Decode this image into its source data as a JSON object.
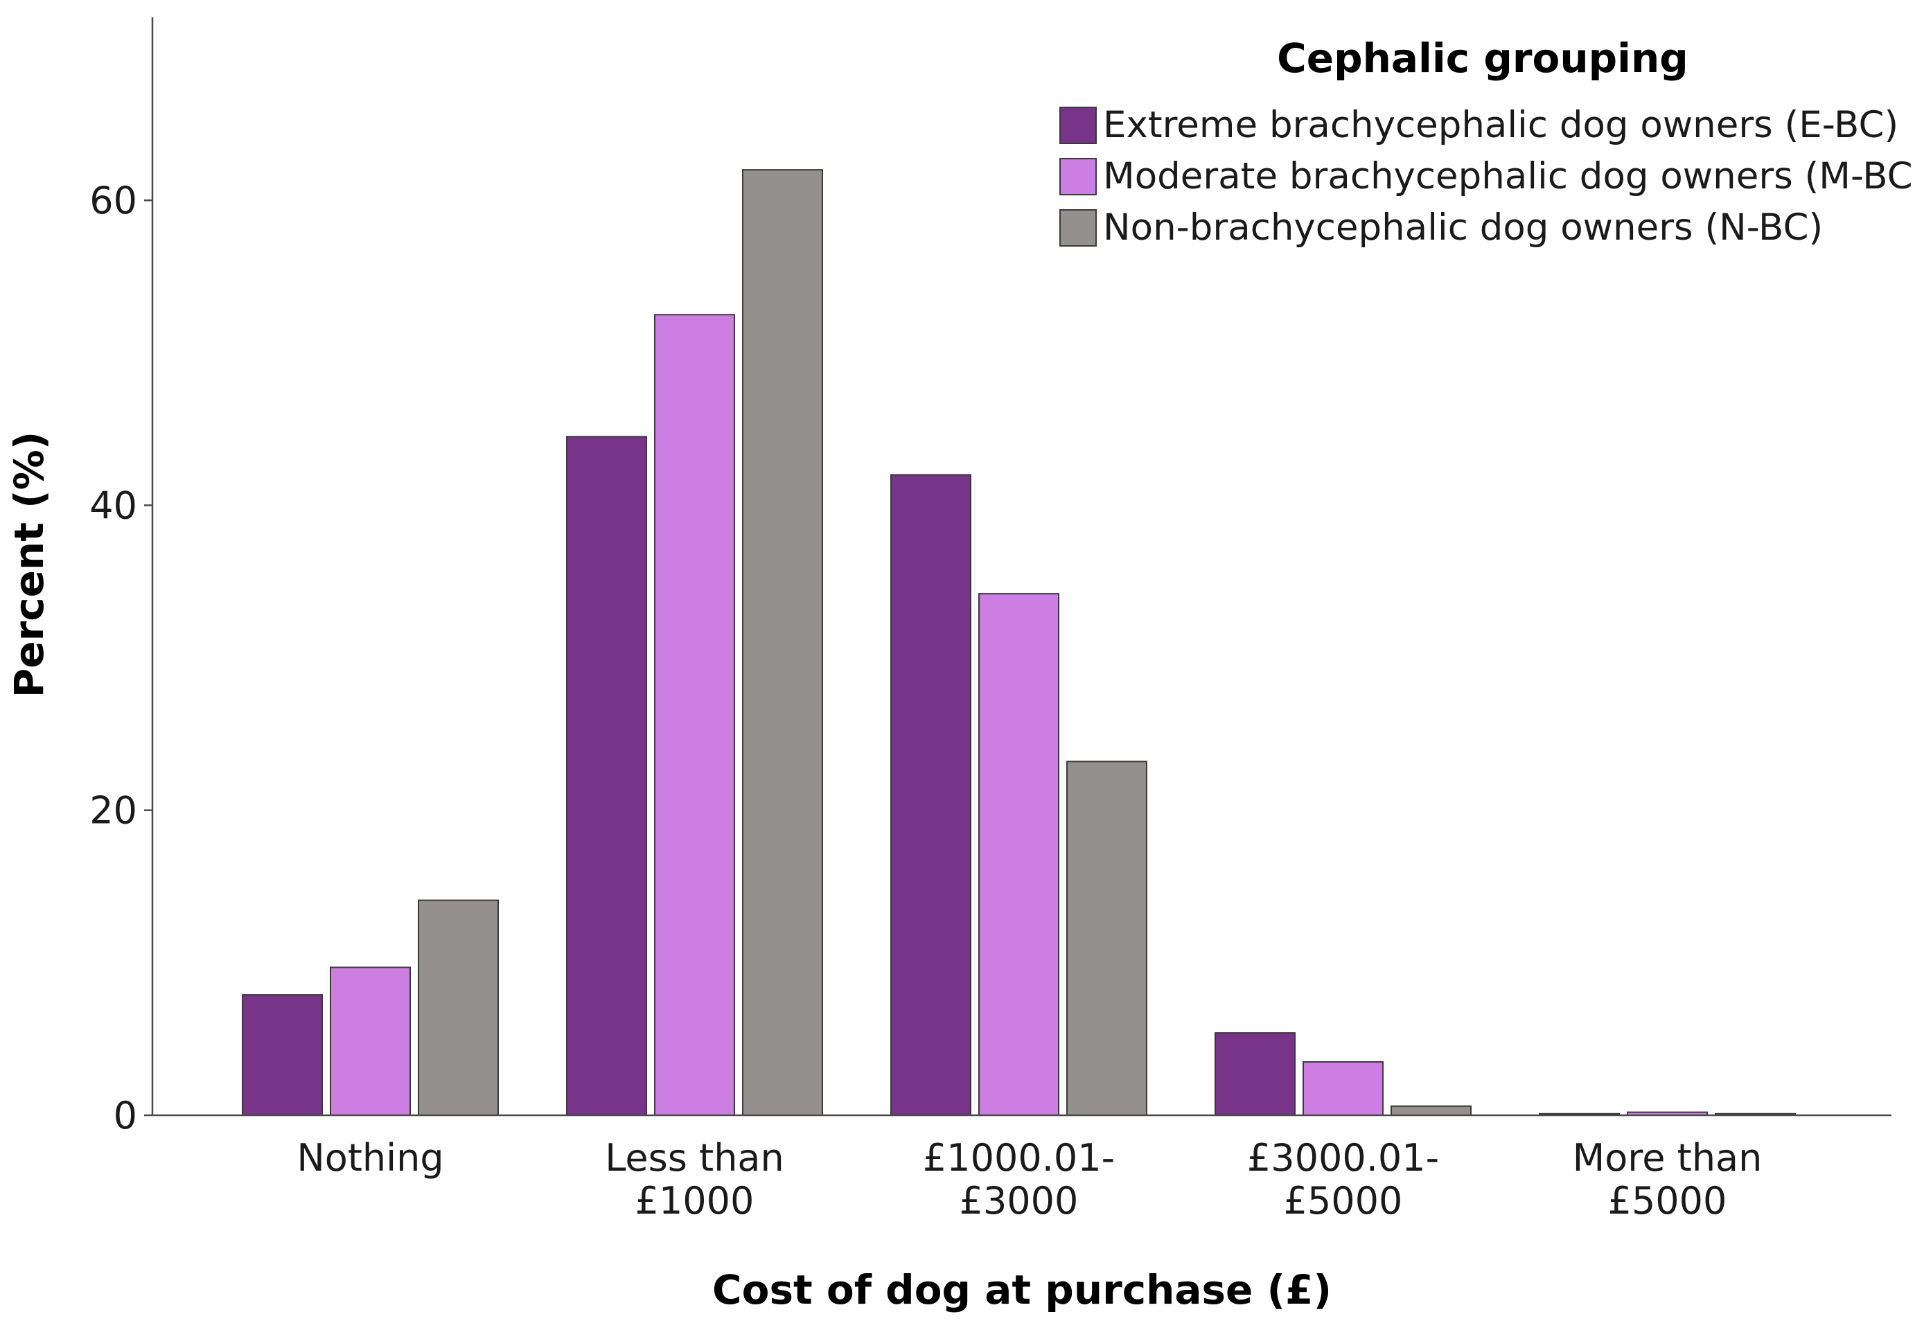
{
  "chart_data": {
    "type": "bar",
    "title": "",
    "xlabel": "Cost of dog at purchase (£)",
    "ylabel": "Percent (%)",
    "ylim": [
      0,
      72
    ],
    "yticks": [
      0,
      20,
      40,
      60
    ],
    "grid": false,
    "categories": [
      [
        "Nothing"
      ],
      [
        "Less than",
        "£1000"
      ],
      [
        "£1000.01-",
        "£3000"
      ],
      [
        "£3000.01-",
        "£5000"
      ],
      [
        "More than",
        "£5000"
      ]
    ],
    "legend": {
      "title": "Cephalic grouping",
      "position": "top-right"
    },
    "series": [
      {
        "name": "Extreme brachycephalic dog owners (E-BC)",
        "color": "#773489",
        "values": [
          7.9,
          44.5,
          42.0,
          5.4,
          0.1
        ]
      },
      {
        "name": "Moderate brachycephalic dog owners (M-BC)",
        "color": "#cc7ee3",
        "values": [
          9.7,
          52.5,
          34.2,
          3.5,
          0.2
        ]
      },
      {
        "name": "Non-brachycephalic dog owners (N-BC)",
        "color": "#959090",
        "values": [
          14.1,
          62.0,
          23.2,
          0.6,
          0.1
        ]
      }
    ]
  }
}
